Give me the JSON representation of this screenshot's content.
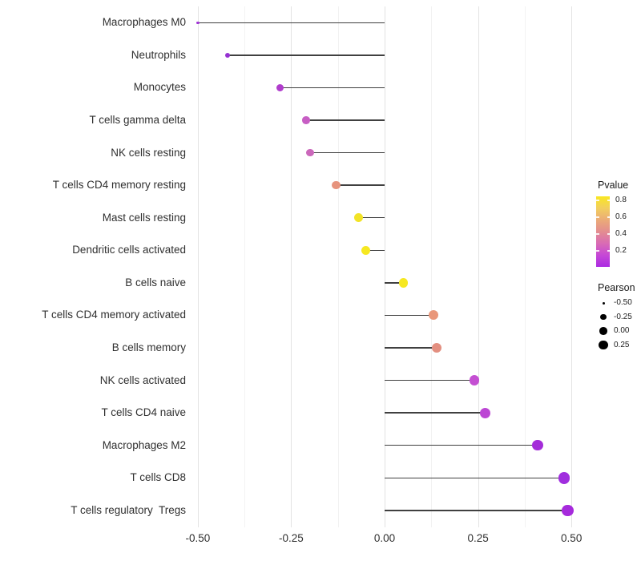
{
  "chart_data": {
    "type": "lollipop",
    "title": "",
    "xlabel": "",
    "ylabel": "",
    "xlim": [
      -0.519,
      0.506
    ],
    "grid": true,
    "x_ticks": [
      {
        "value": -0.5,
        "label": "-0.50"
      },
      {
        "value": -0.25,
        "label": "-0.25"
      },
      {
        "value": 0.0,
        "label": "0.00"
      },
      {
        "value": 0.25,
        "label": "0.25"
      },
      {
        "value": 0.5,
        "label": "0.50"
      }
    ],
    "x_minor_ticks": [
      -0.375,
      -0.125,
      0.125,
      0.375
    ],
    "points": [
      {
        "category": "Macrophages M0",
        "pearson": -0.5,
        "pvalue_approx": 0.15,
        "color": "#A134D6",
        "diameter": 3.5
      },
      {
        "category": "Neutrophils",
        "pearson": -0.42,
        "pvalue_approx": 0.12,
        "color": "#9632D2",
        "diameter": 6
      },
      {
        "category": "Monocytes",
        "pearson": -0.28,
        "pvalue_approx": 0.25,
        "color": "#B03CCC",
        "diameter": 9
      },
      {
        "category": "T cells gamma delta",
        "pearson": -0.21,
        "pvalue_approx": 0.33,
        "color": "#C75EC4",
        "diameter": 9.5
      },
      {
        "category": "NK cells resting",
        "pearson": -0.2,
        "pvalue_approx": 0.37,
        "color": "#CB68BB",
        "diameter": 9.5
      },
      {
        "category": "T cells CD4 memory resting",
        "pearson": -0.13,
        "pvalue_approx": 0.55,
        "color": "#E6937D",
        "diameter": 10.5
      },
      {
        "category": "Mast cells resting",
        "pearson": -0.07,
        "pvalue_approx": 0.8,
        "color": "#F2E326",
        "diameter": 11
      },
      {
        "category": "Dendritic cells activated",
        "pearson": -0.05,
        "pvalue_approx": 0.82,
        "color": "#F6E821",
        "diameter": 11
      },
      {
        "category": "B cells naive",
        "pearson": 0.05,
        "pvalue_approx": 0.82,
        "color": "#F6E821",
        "diameter": 11.5
      },
      {
        "category": "T cells CD4 memory activated",
        "pearson": 0.13,
        "pvalue_approx": 0.52,
        "color": "#E9977A",
        "diameter": 12
      },
      {
        "category": "B cells memory",
        "pearson": 0.14,
        "pvalue_approx": 0.5,
        "color": "#E38F80",
        "diameter": 12
      },
      {
        "category": "NK cells activated",
        "pearson": 0.24,
        "pvalue_approx": 0.25,
        "color": "#C44FD2",
        "diameter": 12.5
      },
      {
        "category": "T cells CD4 naive",
        "pearson": 0.27,
        "pvalue_approx": 0.2,
        "color": "#BC46D4",
        "diameter": 13
      },
      {
        "category": "Macrophages M2",
        "pearson": 0.41,
        "pvalue_approx": 0.12,
        "color": "#A42CD9",
        "diameter": 13.5
      },
      {
        "category": "T cells CD8",
        "pearson": 0.48,
        "pvalue_approx": 0.1,
        "color": "#A02EDE",
        "diameter": 14.5
      },
      {
        "category": "T cells regulatory  Tregs",
        "pearson": 0.49,
        "pvalue_approx": 0.1,
        "color": "#A62ADC",
        "diameter": 14.5
      }
    ],
    "legend": {
      "pvalue": {
        "title": "Pvalue",
        "ticks": [
          {
            "value": 0.8,
            "label": "0.8"
          },
          {
            "value": 0.6,
            "label": "0.6"
          },
          {
            "value": 0.4,
            "label": "0.4"
          },
          {
            "value": 0.2,
            "label": "0.2"
          }
        ],
        "bar_value_range": [
          0.85,
          0.01
        ],
        "gradient_top_to_bottom": [
          "#F9E721",
          "#F2CE5E",
          "#EBAB77",
          "#E38D90",
          "#D96BB4",
          "#C648D6",
          "#AB2BE2"
        ]
      },
      "pearson": {
        "title": "Pearson",
        "items": [
          {
            "label": "-0.50",
            "diameter": 3
          },
          {
            "label": "-0.25",
            "diameter": 7.5
          },
          {
            "label": "0.00",
            "diameter": 9.5
          },
          {
            "label": "0.25",
            "diameter": 11.5
          }
        ],
        "dot_color": "#000000"
      }
    },
    "style": {
      "background": "#FFFFFF",
      "stem_color": "#404040",
      "grid_major_color": "#E3E3E3",
      "grid_minor_color": "#F2F2F2",
      "axis_text_color": "#303030"
    }
  }
}
